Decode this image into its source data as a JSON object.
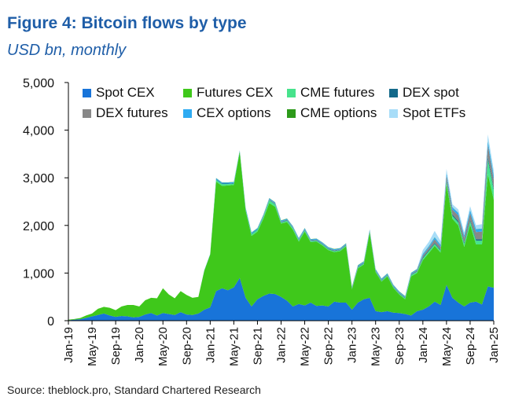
{
  "title": "Figure 4: Bitcoin flows by type",
  "subtitle": "USD bn, monthly",
  "source": "Source: theblock.pro, Standard Chartered Research",
  "chart_data": {
    "type": "area",
    "stacked": true,
    "ylim": [
      0,
      5000
    ],
    "yticks": [
      0,
      1000,
      2000,
      3000,
      4000,
      5000
    ],
    "ytick_labels": [
      "0",
      "1,000",
      "2,000",
      "3,000",
      "4,000",
      "5,000"
    ],
    "xtick_labels": [
      "Jan-19",
      "May-19",
      "Sep-19",
      "Jan-20",
      "May-20",
      "Sep-20",
      "Jan-21",
      "May-21",
      "Sep-21",
      "Jan-22",
      "May-22",
      "Sep-22",
      "Jan-23",
      "May-23",
      "Sep-23",
      "Jan-24",
      "May-24",
      "Sep-24",
      "Jan-25"
    ],
    "xtick_every": 4,
    "legend_position": "top-left",
    "grid": false,
    "x": [
      "Jan-19",
      "Feb-19",
      "Mar-19",
      "Apr-19",
      "May-19",
      "Jun-19",
      "Jul-19",
      "Aug-19",
      "Sep-19",
      "Oct-19",
      "Nov-19",
      "Dec-19",
      "Jan-20",
      "Feb-20",
      "Mar-20",
      "Apr-20",
      "May-20",
      "Jun-20",
      "Jul-20",
      "Aug-20",
      "Sep-20",
      "Oct-20",
      "Nov-20",
      "Dec-20",
      "Jan-21",
      "Feb-21",
      "Mar-21",
      "Apr-21",
      "May-21",
      "Jun-21",
      "Jul-21",
      "Aug-21",
      "Sep-21",
      "Oct-21",
      "Nov-21",
      "Dec-21",
      "Jan-22",
      "Feb-22",
      "Mar-22",
      "Apr-22",
      "May-22",
      "Jun-22",
      "Jul-22",
      "Aug-22",
      "Sep-22",
      "Oct-22",
      "Nov-22",
      "Dec-22",
      "Jan-23",
      "Feb-23",
      "Mar-23",
      "Apr-23",
      "May-23",
      "Jun-23",
      "Jul-23",
      "Aug-23",
      "Sep-23",
      "Oct-23",
      "Nov-23",
      "Dec-23",
      "Jan-24",
      "Feb-24",
      "Mar-24",
      "Apr-24",
      "May-24",
      "Jun-24",
      "Jul-24",
      "Aug-24",
      "Sep-24",
      "Oct-24",
      "Nov-24",
      "Dec-24",
      "Jan-25"
    ],
    "series": [
      {
        "name": "Spot CEX",
        "color": "#1874d9",
        "values": [
          10,
          20,
          30,
          60,
          90,
          120,
          150,
          110,
          80,
          100,
          90,
          70,
          80,
          130,
          160,
          110,
          160,
          140,
          120,
          180,
          130,
          120,
          150,
          230,
          280,
          620,
          680,
          640,
          700,
          900,
          480,
          300,
          450,
          520,
          570,
          560,
          500,
          420,
          300,
          350,
          320,
          380,
          310,
          320,
          300,
          400,
          380,
          380,
          230,
          380,
          450,
          480,
          200,
          180,
          200,
          170,
          160,
          140,
          110,
          200,
          230,
          300,
          400,
          330,
          750,
          480,
          380,
          300,
          380,
          400,
          340,
          720,
          690
        ]
      },
      {
        "name": "Futures CEX",
        "color": "#3fc81b",
        "values": [
          10,
          15,
          25,
          50,
          60,
          130,
          140,
          160,
          140,
          200,
          240,
          260,
          220,
          300,
          320,
          360,
          520,
          410,
          350,
          440,
          410,
          360,
          350,
          820,
          1110,
          2300,
          2150,
          2200,
          2150,
          2650,
          1830,
          1480,
          1420,
          1620,
          1900,
          1830,
          1540,
          1650,
          1610,
          1310,
          1550,
          1270,
          1350,
          1260,
          1180,
          1040,
          1080,
          1180,
          430,
          720,
          730,
          1370,
          820,
          640,
          730,
          520,
          390,
          310,
          820,
          800,
          1040,
          1120,
          1170,
          1100,
          2120,
          1660,
          1620,
          1250,
          1640,
          1200,
          1260,
          2360,
          1850
        ]
      },
      {
        "name": "CME futures",
        "color": "#47e38c",
        "values": [
          0,
          0,
          0,
          0,
          0,
          0,
          0,
          0,
          0,
          0,
          0,
          0,
          0,
          0,
          0,
          0,
          0,
          0,
          0,
          0,
          0,
          0,
          0,
          0,
          0,
          40,
          40,
          30,
          30,
          0,
          30,
          40,
          40,
          40,
          60,
          50,
          20,
          30,
          30,
          30,
          30,
          20,
          20,
          20,
          20,
          20,
          20,
          20,
          20,
          20,
          20,
          20,
          20,
          20,
          20,
          20,
          20,
          20,
          30,
          30,
          40,
          40,
          40,
          40,
          60,
          60,
          60,
          60,
          70,
          80,
          80,
          300,
          200
        ]
      },
      {
        "name": "DEX spot",
        "color": "#13698a",
        "values": [
          0,
          0,
          0,
          0,
          0,
          0,
          0,
          0,
          0,
          0,
          0,
          0,
          0,
          0,
          0,
          0,
          0,
          0,
          0,
          0,
          0,
          0,
          0,
          0,
          0,
          10,
          10,
          10,
          10,
          0,
          10,
          10,
          10,
          10,
          10,
          10,
          10,
          10,
          10,
          10,
          10,
          10,
          10,
          10,
          10,
          10,
          10,
          10,
          10,
          10,
          10,
          10,
          10,
          10,
          10,
          10,
          10,
          10,
          10,
          10,
          20,
          20,
          20,
          20,
          30,
          30,
          30,
          30,
          30,
          30,
          30,
          60,
          40
        ]
      },
      {
        "name": "DEX futures",
        "color": "#888888",
        "values": [
          0,
          0,
          0,
          0,
          0,
          0,
          0,
          0,
          0,
          0,
          0,
          0,
          0,
          0,
          0,
          0,
          0,
          0,
          0,
          0,
          0,
          0,
          0,
          0,
          0,
          0,
          0,
          0,
          0,
          0,
          0,
          0,
          0,
          10,
          10,
          10,
          10,
          10,
          10,
          10,
          10,
          10,
          10,
          10,
          10,
          10,
          10,
          10,
          10,
          10,
          10,
          10,
          10,
          10,
          10,
          10,
          10,
          10,
          10,
          20,
          40,
          50,
          80,
          60,
          90,
          100,
          120,
          100,
          140,
          150,
          160,
          250,
          180
        ]
      },
      {
        "name": "CEX options",
        "color": "#2eabf2",
        "values": [
          0,
          0,
          0,
          0,
          0,
          0,
          0,
          0,
          0,
          0,
          0,
          0,
          0,
          0,
          0,
          0,
          0,
          0,
          0,
          0,
          0,
          0,
          0,
          10,
          10,
          20,
          20,
          20,
          20,
          20,
          20,
          20,
          20,
          20,
          20,
          20,
          20,
          20,
          20,
          20,
          20,
          20,
          20,
          20,
          20,
          20,
          20,
          20,
          10,
          20,
          20,
          20,
          20,
          20,
          20,
          20,
          20,
          20,
          20,
          20,
          30,
          30,
          40,
          40,
          50,
          50,
          50,
          50,
          60,
          60,
          60,
          80,
          80
        ]
      },
      {
        "name": "CME options",
        "color": "#2d9a1a",
        "values": [
          0,
          0,
          0,
          0,
          0,
          0,
          0,
          0,
          0,
          0,
          0,
          0,
          0,
          0,
          0,
          0,
          0,
          0,
          0,
          0,
          0,
          0,
          0,
          0,
          0,
          5,
          5,
          5,
          5,
          5,
          5,
          5,
          5,
          5,
          5,
          5,
          5,
          5,
          5,
          5,
          5,
          5,
          5,
          5,
          5,
          5,
          5,
          5,
          5,
          5,
          5,
          5,
          5,
          5,
          5,
          5,
          5,
          5,
          5,
          5,
          5,
          5,
          5,
          5,
          5,
          5,
          5,
          5,
          5,
          5,
          5,
          10,
          10
        ]
      },
      {
        "name": "Spot ETFs",
        "color": "#a8ddf8",
        "values": [
          0,
          0,
          0,
          0,
          0,
          0,
          0,
          0,
          0,
          0,
          0,
          0,
          0,
          0,
          0,
          0,
          0,
          0,
          0,
          0,
          0,
          0,
          0,
          0,
          0,
          0,
          0,
          0,
          0,
          0,
          0,
          0,
          0,
          0,
          0,
          0,
          0,
          0,
          0,
          0,
          0,
          0,
          0,
          0,
          0,
          0,
          0,
          0,
          0,
          0,
          0,
          0,
          0,
          0,
          0,
          0,
          0,
          0,
          0,
          0,
          80,
          90,
          130,
          80,
          80,
          60,
          70,
          60,
          80,
          80,
          90,
          130,
          100
        ]
      }
    ]
  }
}
